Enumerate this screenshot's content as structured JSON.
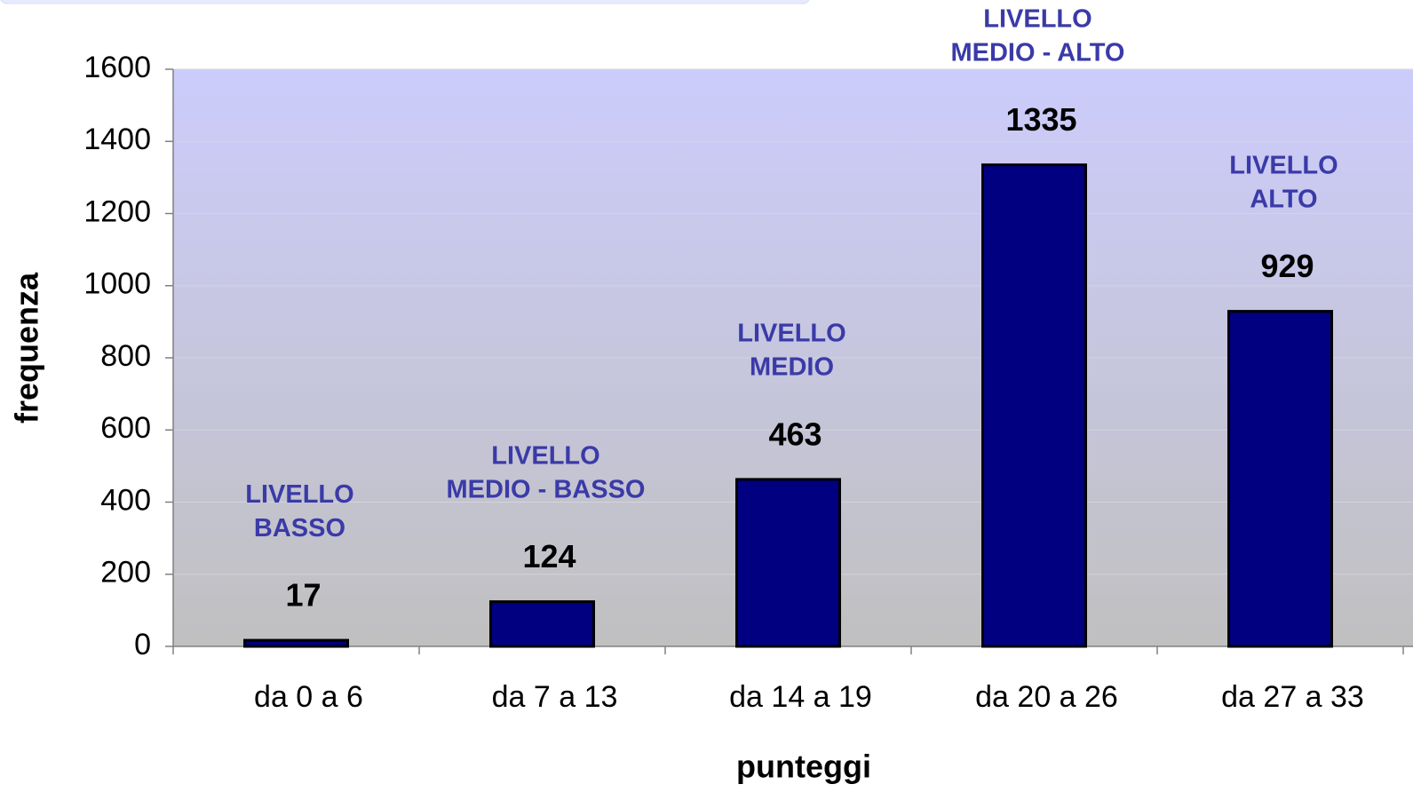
{
  "chart_data": {
    "type": "bar",
    "categories": [
      "da 0 a 6",
      "da 7 a 13",
      "da 14 a 19",
      "da 20 a 26",
      "da 27 a 33"
    ],
    "values": [
      17,
      124,
      463,
      1335,
      929
    ],
    "annotations": [
      [
        "LIVELLO",
        "BASSO"
      ],
      [
        "LIVELLO",
        "MEDIO - BASSO"
      ],
      [
        "LIVELLO",
        "MEDIO"
      ],
      [
        "LIVELLO",
        "MEDIO - ALTO"
      ],
      [
        "LIVELLO",
        "ALTO"
      ]
    ],
    "color": "#000080",
    "x_label": "punteggi",
    "y_label": "frequenza",
    "ylim": [
      0,
      1600
    ],
    "yticks": [
      0,
      200,
      400,
      600,
      800,
      1000,
      1200,
      1400,
      1600
    ],
    "grid": true
  }
}
